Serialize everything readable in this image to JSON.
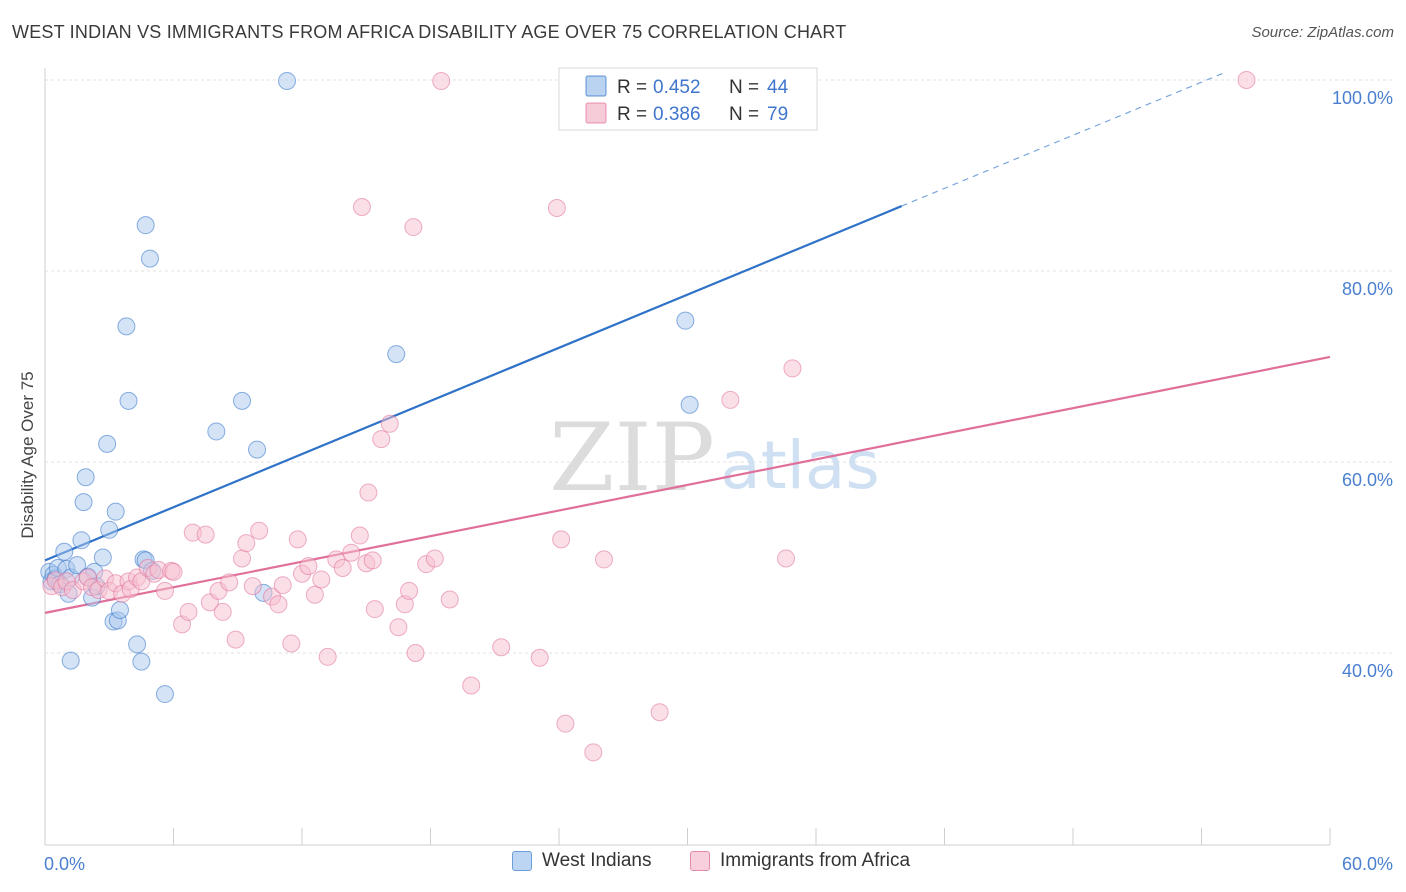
{
  "header": {
    "title": "WEST INDIAN VS IMMIGRANTS FROM AFRICA DISABILITY AGE OVER 75 CORRELATION CHART",
    "source": "Source: ZipAtlas.com"
  },
  "watermark": {
    "zip": "ZIP",
    "atlas": "atlas"
  },
  "chart_data": {
    "type": "scatter",
    "title": "WEST INDIAN VS IMMIGRANTS FROM AFRICA DISABILITY AGE OVER 75 CORRELATION CHART",
    "xlabel": "",
    "ylabel": "Disability Age Over 75",
    "xlim": [
      0,
      60
    ],
    "ylim": [
      20,
      102
    ],
    "x_tick_labels": [
      "0.0%",
      "60.0%"
    ],
    "y_ticks": [
      {
        "value": 100,
        "label": "100.0%"
      },
      {
        "value": 80,
        "label": "80.0%"
      },
      {
        "value": 60,
        "label": "60.0%"
      },
      {
        "value": 40,
        "label": "40.0%"
      }
    ],
    "grid": true,
    "legend_position": "top-center",
    "series": [
      {
        "name": "West Indians",
        "color": "#2f72c8",
        "fill": "#a9c8ee",
        "stats": {
          "r_label": "R = ",
          "r": "0.452",
          "n_label": "N = ",
          "n": "44"
        },
        "trend": {
          "x0": 0,
          "y0": 49.7,
          "x1": 40,
          "y1": 86.8,
          "dashed_to_x": 55,
          "dashed_to_y": 100.7
        },
        "points": [
          [
            0.2,
            48.5
          ],
          [
            0.3,
            47.5
          ],
          [
            0.4,
            48.2
          ],
          [
            0.5,
            47.8
          ],
          [
            0.6,
            48.9
          ],
          [
            0.7,
            47.2
          ],
          [
            0.9,
            50.6
          ],
          [
            1.0,
            48.8
          ],
          [
            1.1,
            46.2
          ],
          [
            1.2,
            47.9
          ],
          [
            1.5,
            49.2
          ],
          [
            1.7,
            51.8
          ],
          [
            1.8,
            55.8
          ],
          [
            1.9,
            58.4
          ],
          [
            2.0,
            48.0
          ],
          [
            2.2,
            45.8
          ],
          [
            2.3,
            48.5
          ],
          [
            2.4,
            47.0
          ],
          [
            2.7,
            50.0
          ],
          [
            2.9,
            61.9
          ],
          [
            3.2,
            43.3
          ],
          [
            3.4,
            43.4
          ],
          [
            3.5,
            44.5
          ],
          [
            4.3,
            40.9
          ],
          [
            3.0,
            52.9
          ],
          [
            3.3,
            54.8
          ],
          [
            3.9,
            66.4
          ],
          [
            4.6,
            49.8
          ],
          [
            4.7,
            49.7
          ],
          [
            5.0,
            48.6
          ],
          [
            1.2,
            39.2
          ],
          [
            4.5,
            39.1
          ],
          [
            5.6,
            35.7
          ],
          [
            3.8,
            74.2
          ],
          [
            4.9,
            81.3
          ],
          [
            4.7,
            84.8
          ],
          [
            8.0,
            63.2
          ],
          [
            9.2,
            66.4
          ],
          [
            9.9,
            61.3
          ],
          [
            10.2,
            46.3
          ],
          [
            11.3,
            99.9
          ],
          [
            16.4,
            71.3
          ],
          [
            29.9,
            74.8
          ],
          [
            30.1,
            66.0
          ]
        ]
      },
      {
        "name": "Immigrants from Africa",
        "color": "#e0709a",
        "fill": "#f5bfd0",
        "stats": {
          "r_label": "R = ",
          "r": "0.386",
          "n_label": "N = ",
          "n": "79"
        },
        "trend": {
          "x0": 0,
          "y0": 44.2,
          "x1": 60,
          "y1": 71.0
        },
        "points": [
          [
            0.3,
            47.0
          ],
          [
            0.5,
            47.6
          ],
          [
            0.8,
            46.9
          ],
          [
            1.0,
            47.5
          ],
          [
            1.3,
            46.6
          ],
          [
            1.8,
            47.5
          ],
          [
            2.0,
            47.9
          ],
          [
            2.2,
            46.9
          ],
          [
            2.5,
            46.6
          ],
          [
            2.8,
            47.8
          ],
          [
            3.0,
            46.5
          ],
          [
            3.3,
            47.3
          ],
          [
            3.6,
            46.2
          ],
          [
            3.9,
            47.5
          ],
          [
            4.0,
            46.7
          ],
          [
            4.3,
            47.9
          ],
          [
            4.5,
            47.5
          ],
          [
            4.8,
            48.9
          ],
          [
            5.1,
            48.3
          ],
          [
            5.3,
            48.7
          ],
          [
            5.6,
            46.5
          ],
          [
            5.9,
            48.6
          ],
          [
            6.0,
            48.5
          ],
          [
            6.4,
            43.0
          ],
          [
            6.7,
            44.3
          ],
          [
            6.9,
            52.6
          ],
          [
            7.5,
            52.4
          ],
          [
            7.7,
            45.3
          ],
          [
            8.1,
            46.5
          ],
          [
            8.3,
            44.3
          ],
          [
            8.6,
            47.4
          ],
          [
            8.9,
            41.4
          ],
          [
            9.2,
            49.9
          ],
          [
            9.4,
            51.5
          ],
          [
            9.7,
            47.0
          ],
          [
            10.0,
            52.8
          ],
          [
            10.6,
            45.9
          ],
          [
            10.9,
            45.1
          ],
          [
            11.1,
            47.1
          ],
          [
            11.5,
            41.0
          ],
          [
            11.8,
            51.9
          ],
          [
            12.0,
            48.3
          ],
          [
            12.3,
            49.1
          ],
          [
            12.6,
            46.1
          ],
          [
            12.9,
            47.7
          ],
          [
            13.2,
            39.6
          ],
          [
            13.6,
            49.8
          ],
          [
            13.9,
            48.9
          ],
          [
            14.3,
            50.5
          ],
          [
            14.7,
            52.3
          ],
          [
            15.0,
            49.4
          ],
          [
            15.3,
            49.7
          ],
          [
            15.1,
            56.8
          ],
          [
            15.4,
            44.6
          ],
          [
            15.7,
            62.4
          ],
          [
            16.1,
            64.0
          ],
          [
            16.5,
            42.7
          ],
          [
            16.8,
            45.1
          ],
          [
            17.0,
            46.5
          ],
          [
            17.3,
            40.0
          ],
          [
            17.8,
            49.3
          ],
          [
            18.2,
            49.9
          ],
          [
            14.8,
            86.7
          ],
          [
            17.2,
            84.6
          ],
          [
            18.5,
            99.9
          ],
          [
            23.9,
            86.6
          ],
          [
            18.9,
            45.6
          ],
          [
            19.9,
            36.6
          ],
          [
            21.3,
            40.6
          ],
          [
            23.1,
            39.5
          ],
          [
            24.1,
            51.9
          ],
          [
            24.3,
            32.6
          ],
          [
            25.6,
            29.6
          ],
          [
            26.1,
            49.8
          ],
          [
            28.7,
            33.8
          ],
          [
            32.0,
            66.5
          ],
          [
            34.6,
            49.9
          ],
          [
            34.9,
            69.8
          ],
          [
            56.1,
            100.0
          ]
        ]
      }
    ]
  }
}
